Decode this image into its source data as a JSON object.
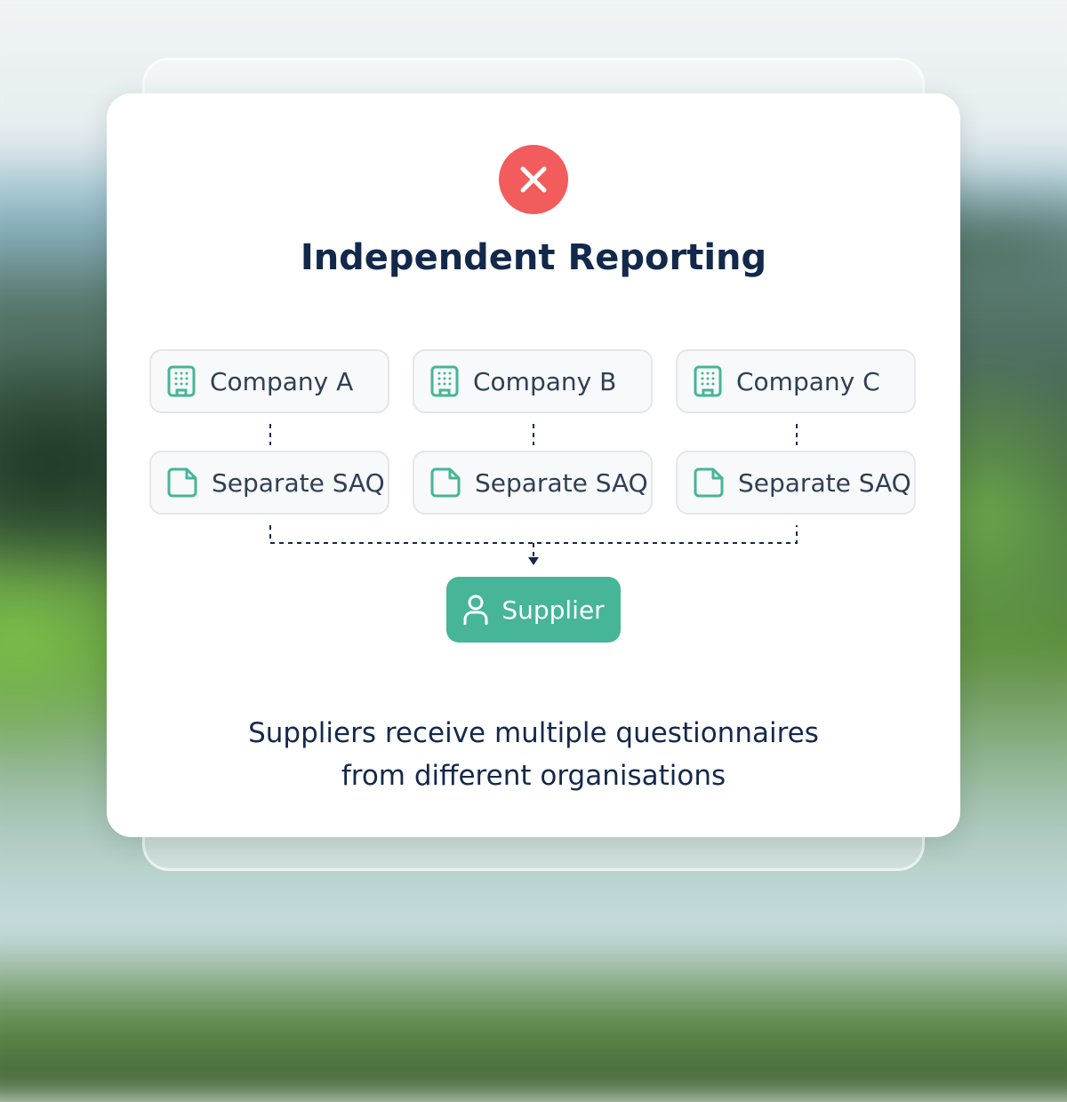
{
  "title": "Independent Reporting",
  "status_icon": "x-circle-icon",
  "status_color": "#f25c5c",
  "accent_color": "#46b598",
  "companies": [
    {
      "name": "Company A",
      "doc": "Separate SAQ"
    },
    {
      "name": "Company B",
      "doc": "Separate SAQ"
    },
    {
      "name": "Company C",
      "doc": "Separate SAQ"
    }
  ],
  "supplier": {
    "label": "Supplier",
    "icon": "user-icon"
  },
  "caption": {
    "line1": "Suppliers receive multiple questionnaires",
    "line2": "from different organisations"
  }
}
